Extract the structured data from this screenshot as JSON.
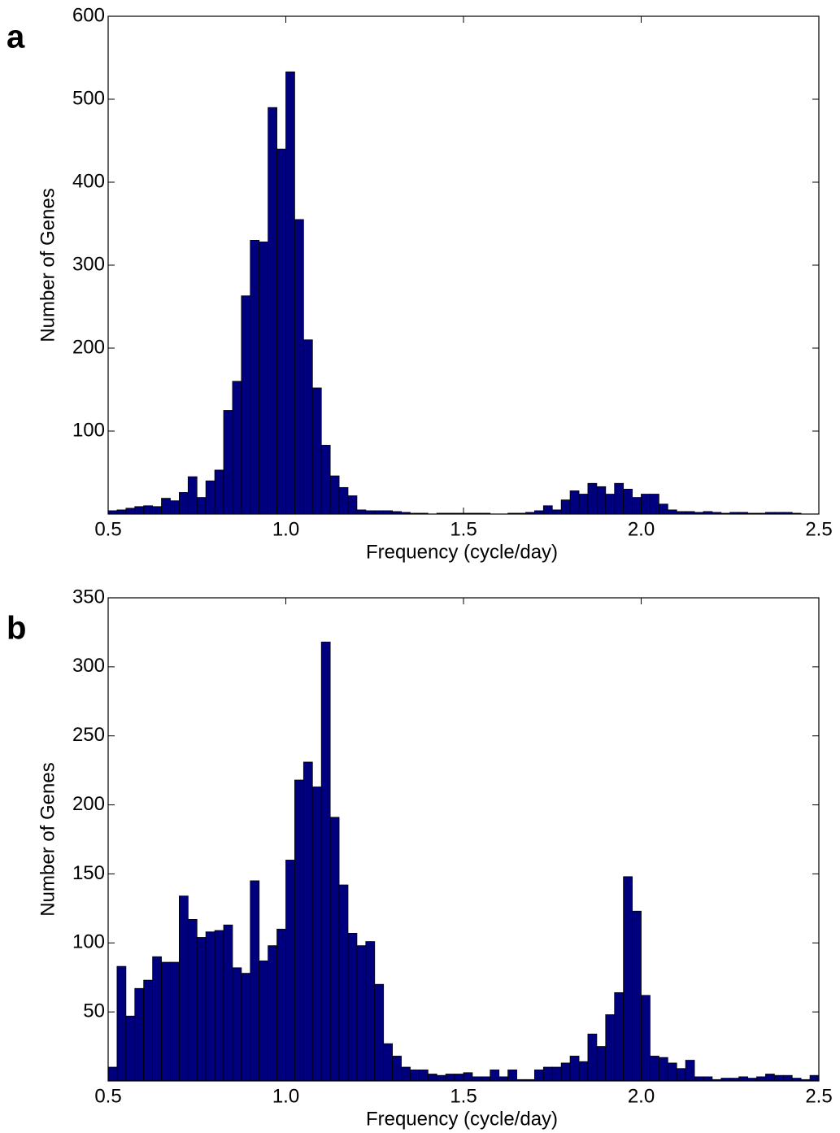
{
  "chart_data": [
    {
      "type": "histogram",
      "panel_label": "a",
      "xlabel": "Frequency (cycle/day)",
      "ylabel": "Number of Genes",
      "color": "#00007f",
      "bins": [
        0.5,
        0.525,
        0.55,
        0.575,
        0.6,
        0.625,
        0.65,
        0.675,
        0.7,
        0.725,
        0.75,
        0.775,
        0.8,
        0.825,
        0.85,
        0.875,
        0.9,
        0.925,
        0.95,
        0.975,
        1,
        1.025,
        1.05,
        1.075,
        1.1,
        1.125,
        1.15,
        1.175,
        1.2,
        1.225,
        1.25,
        1.275,
        1.3,
        1.325,
        1.35,
        1.375,
        1.4,
        1.425,
        1.45,
        1.475,
        1.5,
        1.525,
        1.55,
        1.575,
        1.6,
        1.625,
        1.65,
        1.675,
        1.7,
        1.725,
        1.75,
        1.775,
        1.8,
        1.825,
        1.85,
        1.875,
        1.9,
        1.925,
        1.95,
        1.975,
        2,
        2.025,
        2.05,
        2.075,
        2.1,
        2.125,
        2.15,
        2.175,
        2.2,
        2.225,
        2.25,
        2.275,
        2.3,
        2.325,
        2.35,
        2.375,
        2.4,
        2.425,
        2.45,
        2.475,
        2.5
      ],
      "values": [
        4,
        5,
        7,
        9,
        10,
        9,
        19,
        16,
        26,
        45,
        20,
        40,
        53,
        125,
        160,
        263,
        330,
        328,
        490,
        440,
        533,
        355,
        210,
        152,
        83,
        46,
        32,
        22,
        5,
        4,
        4,
        4,
        3,
        2,
        1,
        1,
        0,
        1,
        1,
        1,
        1,
        1,
        1,
        0,
        0,
        1,
        1,
        2,
        4,
        10,
        5,
        17,
        28,
        24,
        37,
        33,
        24,
        37,
        30,
        20,
        24,
        24,
        12,
        5,
        3,
        3,
        2,
        3,
        2,
        1,
        2,
        2,
        1,
        1,
        2,
        2,
        2,
        1,
        0,
        0
      ],
      "xlim": [
        0.5,
        2.5
      ],
      "ylim": [
        0,
        600
      ],
      "xticks": [
        0.5,
        {
          "value": 1,
          "label": "1.0"
        },
        1.5,
        {
          "value": 2,
          "label": "2.0"
        },
        2.5
      ],
      "yticks": [
        100,
        200,
        300,
        400,
        500,
        600
      ]
    },
    {
      "type": "histogram",
      "panel_label": "b",
      "xlabel": "Frequency (cycle/day)",
      "ylabel": "Number of Genes",
      "color": "#00007f",
      "bins": [
        0.5,
        0.525,
        0.55,
        0.575,
        0.6,
        0.625,
        0.65,
        0.675,
        0.7,
        0.725,
        0.75,
        0.775,
        0.8,
        0.825,
        0.85,
        0.875,
        0.9,
        0.925,
        0.95,
        0.975,
        1,
        1.025,
        1.05,
        1.075,
        1.1,
        1.125,
        1.15,
        1.175,
        1.2,
        1.225,
        1.25,
        1.275,
        1.3,
        1.325,
        1.35,
        1.375,
        1.4,
        1.425,
        1.45,
        1.475,
        1.5,
        1.525,
        1.55,
        1.575,
        1.6,
        1.625,
        1.65,
        1.675,
        1.7,
        1.725,
        1.75,
        1.775,
        1.8,
        1.825,
        1.85,
        1.875,
        1.9,
        1.925,
        1.95,
        1.975,
        2,
        2.025,
        2.05,
        2.075,
        2.1,
        2.125,
        2.15,
        2.175,
        2.2,
        2.225,
        2.25,
        2.275,
        2.3,
        2.325,
        2.35,
        2.375,
        2.4,
        2.425,
        2.45,
        2.475,
        2.5
      ],
      "values": [
        10,
        83,
        47,
        67,
        73,
        90,
        86,
        86,
        134,
        117,
        104,
        108,
        109,
        113,
        82,
        78,
        145,
        87,
        98,
        110,
        160,
        218,
        231,
        213,
        318,
        191,
        142,
        107,
        98,
        101,
        70,
        27,
        18,
        10,
        8,
        8,
        5,
        4,
        5,
        5,
        6,
        3,
        3,
        8,
        3,
        8,
        1,
        1,
        8,
        10,
        10,
        13,
        18,
        14,
        34,
        25,
        48,
        64,
        148,
        123,
        62,
        18,
        17,
        13,
        9,
        15,
        3,
        3,
        1,
        2,
        2,
        3,
        2,
        3,
        5,
        4,
        4,
        2,
        1,
        4
      ],
      "xlim": [
        0.5,
        2.5
      ],
      "ylim": [
        0,
        350
      ],
      "xticks": [
        0.5,
        {
          "value": 1,
          "label": "1.0"
        },
        1.5,
        {
          "value": 2,
          "label": "2.0"
        },
        2.5
      ],
      "yticks": [
        50,
        100,
        150,
        200,
        250,
        300,
        350
      ]
    }
  ]
}
